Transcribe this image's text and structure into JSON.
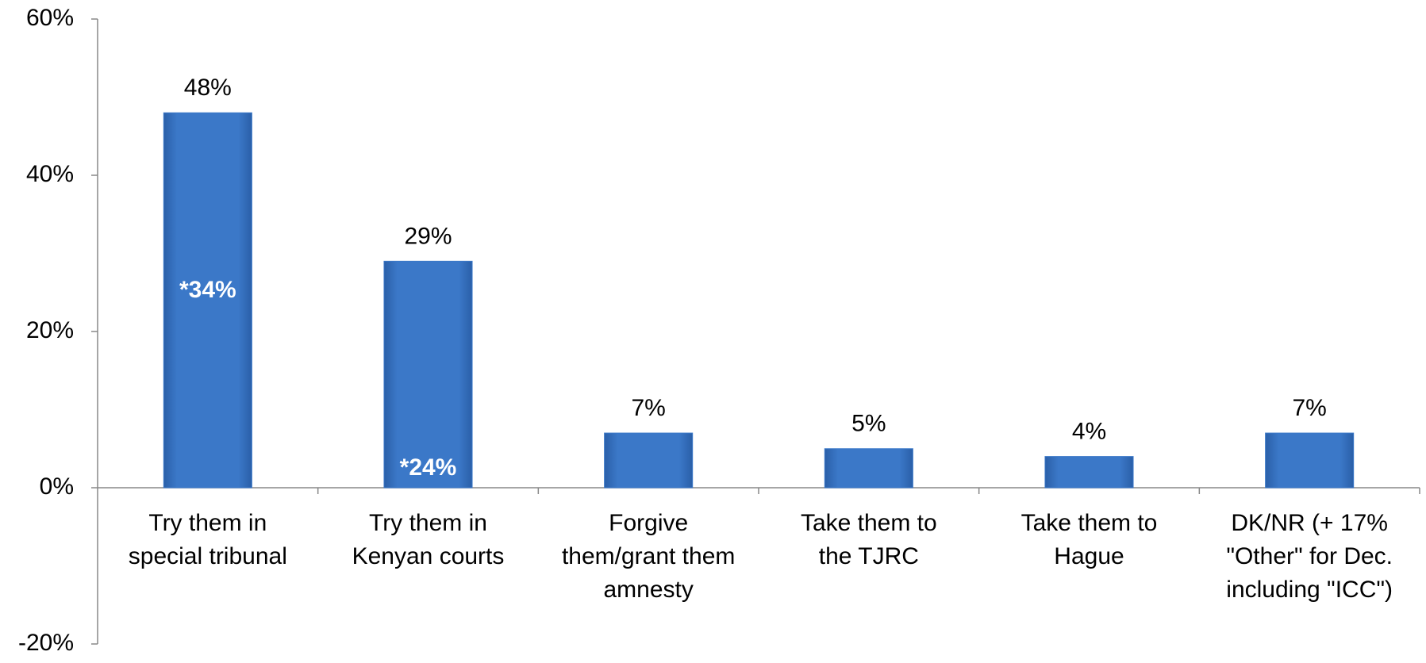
{
  "chart_data": {
    "type": "bar",
    "categories": [
      "Try them in\nspecial tribunal",
      "Try them in\nKenyan courts",
      "Forgive\nthem/grant them\namnesty",
      "Take them to\nthe TJRC",
      "Take them to\nHague",
      "DK/NR (+ 17%\n\"Other\" for Dec.\nincluding \"ICC\")"
    ],
    "values": [
      48,
      29,
      7,
      5,
      4,
      7
    ],
    "value_labels": [
      "48%",
      "29%",
      "7%",
      "5%",
      "4%",
      "7%"
    ],
    "color": "#3b78c8",
    "ylim": [
      -20,
      60
    ],
    "yticks": [
      {
        "value": -20,
        "label": "-20%"
      },
      {
        "value": 0,
        "label": "0%"
      },
      {
        "value": 20,
        "label": "20%"
      },
      {
        "value": 40,
        "label": "40%"
      },
      {
        "value": 60,
        "label": "60%"
      }
    ],
    "grid": false,
    "annotations": [
      "*34%",
      "*24%"
    ]
  }
}
